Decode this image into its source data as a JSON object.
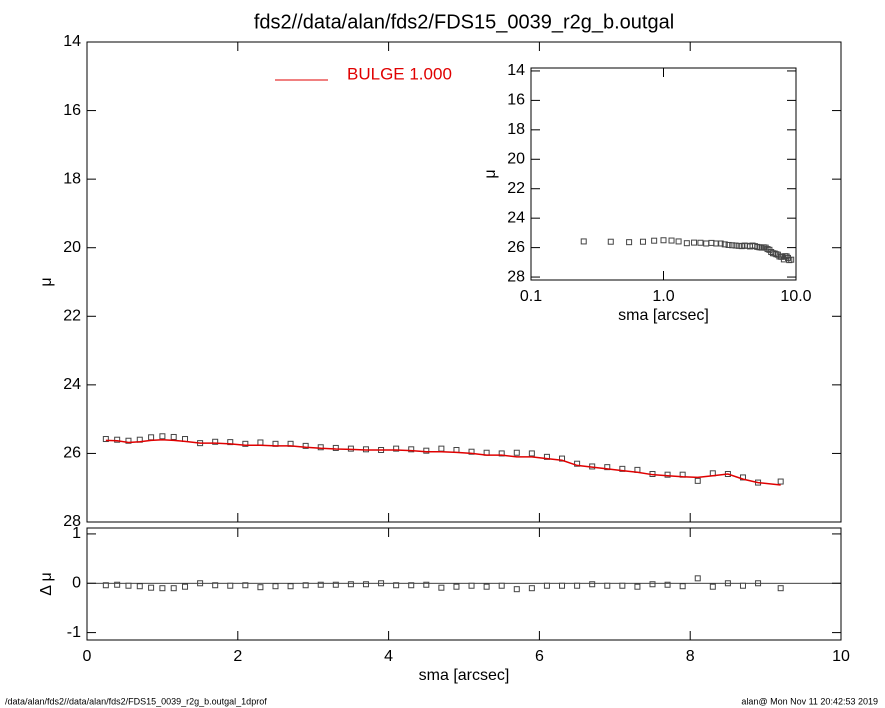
{
  "chart_data": [
    {
      "type": "scatter",
      "title": "fds2//data/alan/fds2/FDS15_0039_r2g_b.outgal",
      "y_label": "μ",
      "xlim": [
        0,
        10
      ],
      "xticks": [
        0,
        2,
        4,
        6,
        8,
        10
      ],
      "ylim": [
        28,
        14
      ],
      "yticks": [
        14,
        16,
        18,
        20,
        22,
        24,
        26,
        28
      ],
      "x": [
        0.25,
        0.4,
        0.55,
        0.7,
        0.85,
        1.0,
        1.15,
        1.3,
        1.5,
        1.7,
        1.9,
        2.1,
        2.3,
        2.5,
        2.7,
        2.9,
        3.1,
        3.3,
        3.5,
        3.7,
        3.9,
        4.1,
        4.3,
        4.5,
        4.7,
        4.9,
        5.1,
        5.3,
        5.5,
        5.7,
        5.9,
        6.1,
        6.3,
        6.5,
        6.7,
        6.9,
        7.1,
        7.3,
        7.5,
        7.7,
        7.9,
        8.1,
        8.3,
        8.5,
        8.7,
        8.9,
        9.2
      ],
      "series": [
        {
          "marker": "square",
          "color": "#444444",
          "values": [
            25.58,
            25.6,
            25.63,
            25.6,
            25.53,
            25.5,
            25.52,
            25.58,
            25.7,
            25.66,
            25.67,
            25.72,
            25.68,
            25.72,
            25.72,
            25.78,
            25.82,
            25.84,
            25.86,
            25.88,
            25.9,
            25.86,
            25.88,
            25.92,
            25.86,
            25.9,
            25.95,
            25.98,
            26.0,
            25.98,
            26.0,
            26.1,
            26.15,
            26.3,
            26.38,
            26.4,
            26.45,
            26.48,
            26.6,
            26.62,
            26.62,
            26.8,
            26.58,
            26.6,
            26.7,
            26.85,
            26.82
          ]
        },
        {
          "name": "BULGE  1.000",
          "marker": "line",
          "color": "#e00000",
          "values": [
            25.62,
            25.63,
            25.68,
            25.66,
            25.62,
            25.6,
            25.62,
            25.65,
            25.7,
            25.7,
            25.72,
            25.76,
            25.76,
            25.78,
            25.78,
            25.82,
            25.85,
            25.87,
            25.88,
            25.9,
            25.9,
            25.9,
            25.92,
            25.95,
            25.95,
            25.97,
            26.0,
            26.05,
            26.05,
            26.1,
            26.1,
            26.15,
            26.2,
            26.35,
            26.4,
            26.45,
            26.5,
            26.55,
            26.62,
            26.65,
            26.68,
            26.7,
            26.65,
            26.6,
            26.75,
            26.85,
            26.92
          ]
        }
      ],
      "legend": "top-left"
    },
    {
      "type": "inset",
      "y_label": "μ",
      "x_label": "sma [arcsec]",
      "log_x": true,
      "xlim": [
        0.1,
        10
      ],
      "xticks": [
        0.1,
        {
          "value": 1,
          "label": "1.0"
        },
        {
          "value": 10,
          "label": "10.0"
        }
      ],
      "ylim": [
        28.2,
        13.8
      ],
      "yticks": [
        14,
        16,
        18,
        20,
        22,
        24,
        26,
        28
      ]
    },
    {
      "type": "scatter",
      "y_label": "Δ μ",
      "x_label": "sma [arcsec]",
      "xlim": [
        0,
        10
      ],
      "xticks": [
        0,
        2,
        4,
        6,
        8,
        10
      ],
      "ylim": [
        -1.15,
        1.12
      ],
      "yticks": [
        -1,
        0,
        1
      ],
      "x": [
        0.25,
        0.4,
        0.55,
        0.7,
        0.85,
        1.0,
        1.15,
        1.3,
        1.5,
        1.7,
        1.9,
        2.1,
        2.3,
        2.5,
        2.7,
        2.9,
        3.1,
        3.3,
        3.5,
        3.7,
        3.9,
        4.1,
        4.3,
        4.5,
        4.7,
        4.9,
        5.1,
        5.3,
        5.5,
        5.7,
        5.9,
        6.1,
        6.3,
        6.5,
        6.7,
        6.9,
        7.1,
        7.3,
        7.5,
        7.7,
        7.9,
        8.1,
        8.3,
        8.5,
        8.7,
        8.9,
        9.2
      ],
      "color": "#444444",
      "values": [
        -0.04,
        -0.03,
        -0.05,
        -0.06,
        -0.09,
        -0.1,
        -0.1,
        -0.07,
        0,
        -0.04,
        -0.05,
        -0.04,
        -0.08,
        -0.06,
        -0.06,
        -0.04,
        -0.03,
        -0.03,
        -0.02,
        -0.02,
        0,
        -0.04,
        -0.04,
        -0.03,
        -0.09,
        -0.07,
        -0.05,
        -0.07,
        -0.05,
        -0.12,
        -0.1,
        -0.05,
        -0.05,
        -0.05,
        -0.02,
        -0.05,
        -0.05,
        -0.07,
        -0.02,
        -0.03,
        -0.06,
        0.1,
        -0.07,
        0,
        -0.05,
        0,
        -0.1
      ]
    }
  ],
  "footer": {
    "left": "/data/alan/fds2//data/alan/fds2/FDS15_0039_r2g_b.outgal_1dprof",
    "right": "alan@  Mon Nov 11 20:42:53 2019"
  }
}
